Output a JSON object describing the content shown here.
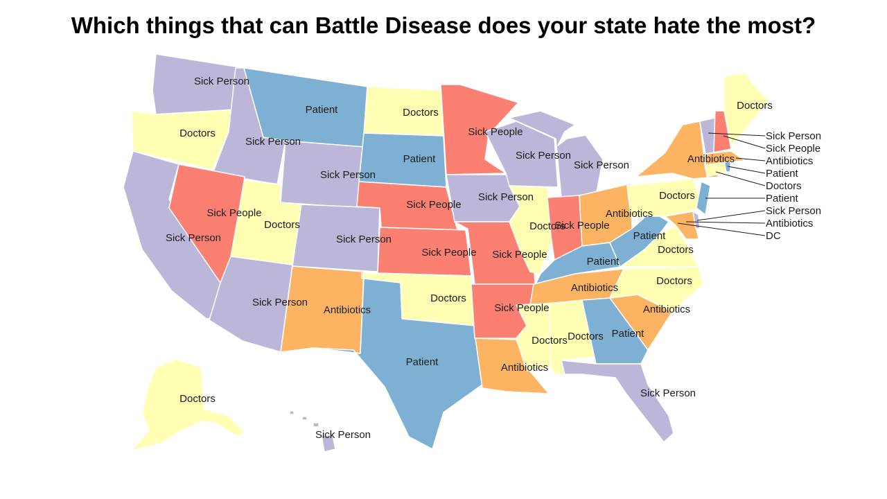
{
  "title": "Which things that can Battle Disease does your state hate the most?",
  "categories": {
    "Sick Person": "#bcb6d9",
    "Patient": "#7eb0d4",
    "Doctors": "#ffffb3",
    "Sick People": "#fb8072",
    "Antibiotics": "#fdb462"
  },
  "states": [
    {
      "id": "WA",
      "answer": "Sick Person",
      "label": "Sick Person"
    },
    {
      "id": "OR",
      "answer": "Doctors",
      "label": "Doctors"
    },
    {
      "id": "CA",
      "answer": "Sick Person",
      "label": "Sick Person"
    },
    {
      "id": "ID",
      "answer": "Sick Person",
      "label": "Sick Person"
    },
    {
      "id": "NV",
      "answer": "Sick People",
      "label": "Sick People"
    },
    {
      "id": "MT",
      "answer": "Patient",
      "label": "Patient"
    },
    {
      "id": "WY",
      "answer": "Sick Person",
      "label": "Sick Person"
    },
    {
      "id": "UT",
      "answer": "Doctors",
      "label": "Doctors"
    },
    {
      "id": "AZ",
      "answer": "Sick Person",
      "label": "Sick Person"
    },
    {
      "id": "CO",
      "answer": "Sick Person",
      "label": "Sick Person"
    },
    {
      "id": "NM",
      "answer": "Antibiotics",
      "label": "Antibiotics"
    },
    {
      "id": "ND",
      "answer": "Doctors",
      "label": "Doctors"
    },
    {
      "id": "SD",
      "answer": "Patient",
      "label": "Patient"
    },
    {
      "id": "NE",
      "answer": "Sick People",
      "label": "Sick People"
    },
    {
      "id": "KS",
      "answer": "Sick People",
      "label": "Sick People"
    },
    {
      "id": "OK",
      "answer": "Doctors",
      "label": "Doctors"
    },
    {
      "id": "TX",
      "answer": "Patient",
      "label": "Patient"
    },
    {
      "id": "MN",
      "answer": "Sick People",
      "label": "Sick People"
    },
    {
      "id": "IA",
      "answer": "Sick Person",
      "label": "Sick Person"
    },
    {
      "id": "MO",
      "answer": "Sick People",
      "label": "Sick People"
    },
    {
      "id": "AR",
      "answer": "Sick People",
      "label": "Sick People"
    },
    {
      "id": "LA",
      "answer": "Antibiotics",
      "label": "Antibiotics"
    },
    {
      "id": "WI",
      "answer": "Sick Person",
      "label": "Sick Person"
    },
    {
      "id": "IL",
      "answer": "Doctors",
      "label": "Doctors"
    },
    {
      "id": "MI",
      "answer": "Sick Person",
      "label": "Sick Person"
    },
    {
      "id": "IN",
      "answer": "Sick People",
      "label": "Sick People"
    },
    {
      "id": "OH",
      "answer": "Antibiotics",
      "label": "Antibiotics"
    },
    {
      "id": "KY",
      "answer": "Patient",
      "label": "Patient"
    },
    {
      "id": "TN",
      "answer": "Antibiotics",
      "label": "Antibiotics"
    },
    {
      "id": "MS",
      "answer": "Doctors",
      "label": "Doctors"
    },
    {
      "id": "AL",
      "answer": "Doctors",
      "label": "Doctors"
    },
    {
      "id": "GA",
      "answer": "Patient",
      "label": "Patient"
    },
    {
      "id": "FL",
      "answer": "Sick Person",
      "label": "Sick Person"
    },
    {
      "id": "SC",
      "answer": "Antibiotics",
      "label": "Antibiotics"
    },
    {
      "id": "NC",
      "answer": "Doctors",
      "label": "Doctors"
    },
    {
      "id": "VA",
      "answer": "Doctors",
      "label": "Doctors"
    },
    {
      "id": "WV",
      "answer": "Patient",
      "label": "Patient"
    },
    {
      "id": "PA",
      "answer": "Doctors",
      "label": "Doctors"
    },
    {
      "id": "NY",
      "answer": "Antibiotics",
      "label": "Antibiotics"
    },
    {
      "id": "ME",
      "answer": "Doctors",
      "label": "Doctors"
    },
    {
      "id": "AK",
      "answer": "Doctors",
      "label": "Doctors"
    },
    {
      "id": "HI",
      "answer": "Sick Person",
      "label": "Sick Person"
    },
    {
      "id": "VT",
      "answer": "Sick Person",
      "label": "Sick Person"
    },
    {
      "id": "NH",
      "answer": "Sick People",
      "label": "Sick People"
    },
    {
      "id": "MA",
      "answer": "Antibiotics",
      "label": "Antibiotics"
    },
    {
      "id": "RI",
      "answer": "Patient",
      "label": "Patient"
    },
    {
      "id": "CT",
      "answer": "Doctors",
      "label": "Doctors"
    },
    {
      "id": "NJ",
      "answer": "Patient",
      "label": "Patient"
    },
    {
      "id": "DE",
      "answer": "Sick Person",
      "label": "Sick Person"
    },
    {
      "id": "MD",
      "answer": "Antibiotics",
      "label": "Antibiotics"
    },
    {
      "id": "DC",
      "answer": "DC",
      "label": "DC"
    }
  ]
}
